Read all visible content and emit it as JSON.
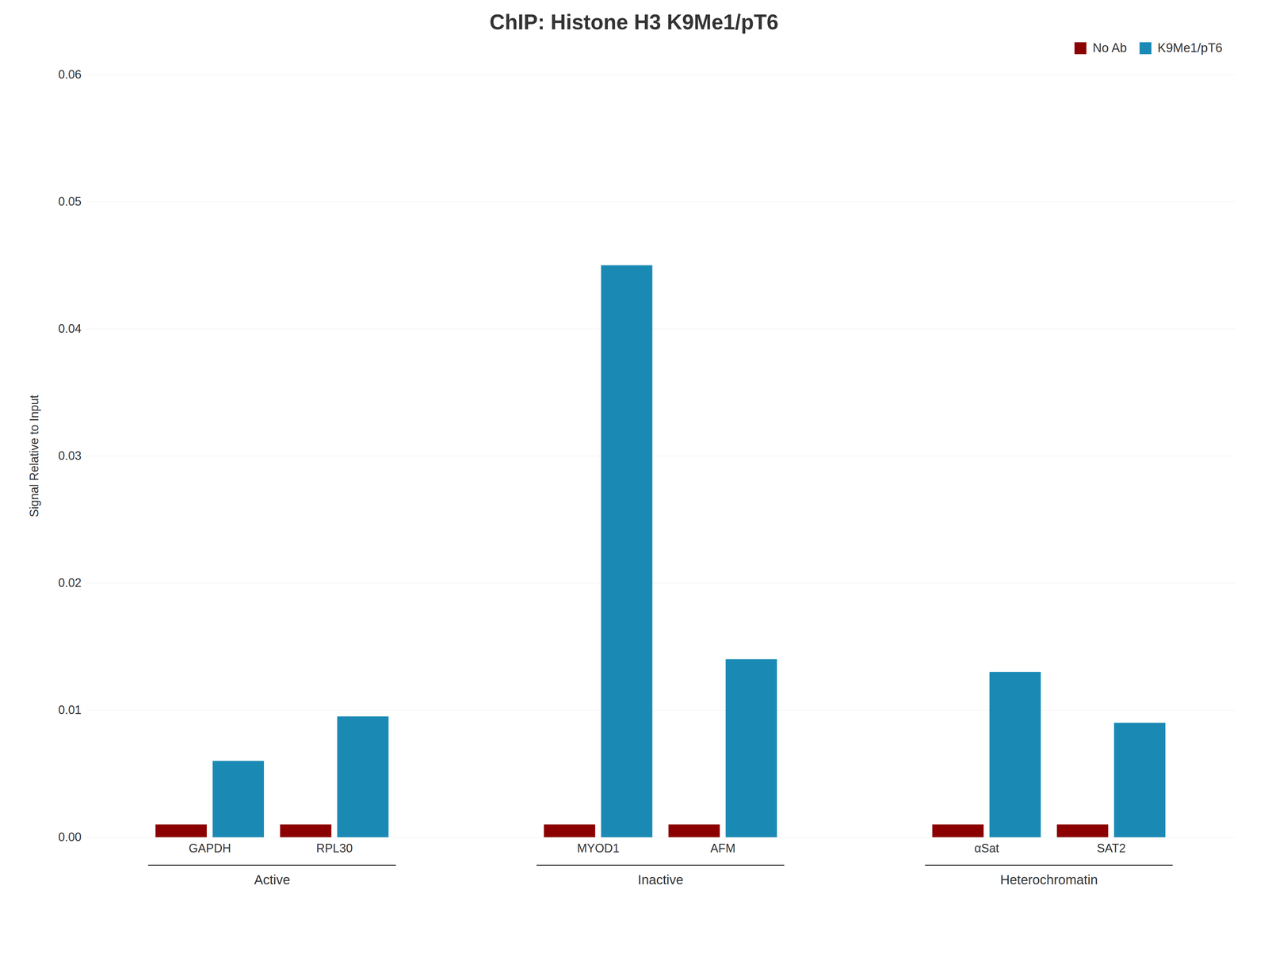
{
  "chart_data": {
    "type": "bar",
    "title": "ChIP: Histone H3 K9Me1/pT6",
    "ylabel": "Signal Relative to Input",
    "categories": [
      "GAPDH",
      "RPL30",
      "MYOD1",
      "AFM",
      "αSat",
      "SAT2"
    ],
    "groups": [
      {
        "label": "Active",
        "categories": [
          "GAPDH",
          "RPL30"
        ]
      },
      {
        "label": "Inactive",
        "categories": [
          "MYOD1",
          "AFM"
        ]
      },
      {
        "label": "Heterochromatin",
        "categories": [
          "αSat",
          "SAT2"
        ]
      }
    ],
    "series": [
      {
        "name": "No Ab",
        "color": "#8B0000",
        "values": [
          0.001,
          0.001,
          0.001,
          0.001,
          0.001,
          0.001
        ]
      },
      {
        "name": "K9Me1/pT6",
        "color": "#1a8ab5",
        "values": [
          0.006,
          0.0095,
          0.045,
          0.014,
          0.013,
          0.009
        ]
      }
    ],
    "ylim": [
      0,
      0.06
    ],
    "yticks": [
      {
        "value": 0,
        "label": "0.00"
      },
      0.01,
      0.02,
      0.03,
      0.04,
      0.05,
      0.06
    ],
    "grid": true,
    "legend": "upper right"
  }
}
